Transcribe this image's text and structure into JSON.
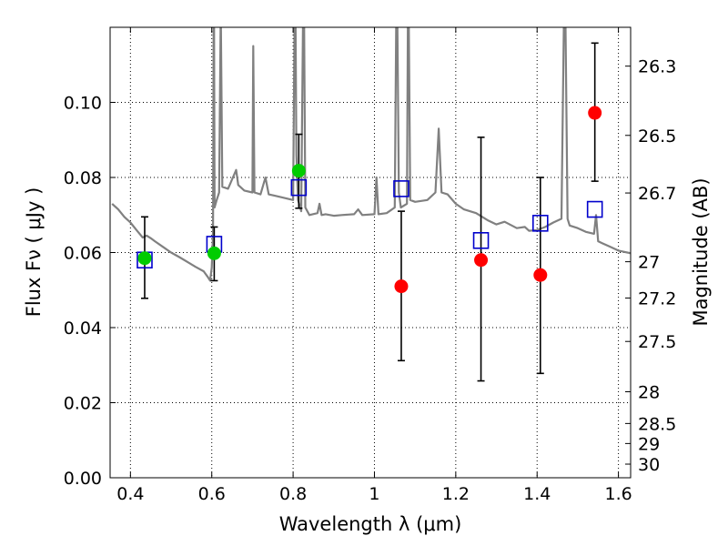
{
  "chart_data": {
    "type": "scatter",
    "xlabel": "Wavelength  λ (μm)",
    "ylabel": "Flux  Fν  ( μJy )",
    "ylabel_right": "Magnitude (AB)",
    "xlim": [
      0.35,
      1.63
    ],
    "ylim": [
      0.0,
      0.12
    ],
    "grid": true,
    "x_ticks": [
      0.4,
      0.6,
      0.8,
      1.0,
      1.2,
      1.4,
      1.6
    ],
    "x_tick_labels": [
      "0.4",
      "0.6",
      "0.8",
      "1",
      "1.2",
      "1.4",
      "1.6"
    ],
    "y_ticks": [
      0.0,
      0.02,
      0.04,
      0.06,
      0.08,
      0.1
    ],
    "y_tick_labels": [
      "0.00",
      "0.02",
      "0.04",
      "0.06",
      "0.08",
      "0.10"
    ],
    "mag_ticks": [
      26.3,
      26.5,
      26.7,
      27,
      27.2,
      27.5,
      28,
      28.5,
      29,
      30
    ],
    "mag_tick_labels": [
      "26.3",
      "26.5",
      "26.7",
      "27",
      "27.2",
      "27.5",
      "28",
      "28.5",
      "29",
      "30"
    ],
    "series": [
      {
        "marker": "circle",
        "color": "#00cc00",
        "points": [
          {
            "x": 0.435,
            "y": 0.0585,
            "yerr_low": 0.0478,
            "yerr_high": 0.0695
          },
          {
            "x": 0.606,
            "y": 0.0598,
            "yerr_low": 0.0525,
            "yerr_high": 0.0668
          },
          {
            "x": 0.814,
            "y": 0.0818,
            "yerr_low": 0.0718,
            "yerr_high": 0.0915
          }
        ]
      },
      {
        "marker": "circle",
        "color": "#ff0000",
        "points": [
          {
            "x": 1.066,
            "y": 0.051,
            "yerr_low": 0.0312,
            "yerr_high": 0.071
          },
          {
            "x": 1.262,
            "y": 0.058,
            "yerr_low": 0.0258,
            "yerr_high": 0.0907
          },
          {
            "x": 1.408,
            "y": 0.054,
            "yerr_low": 0.0278,
            "yerr_high": 0.08
          },
          {
            "x": 1.542,
            "y": 0.0972,
            "yerr_low": 0.079,
            "yerr_high": 0.1158
          }
        ]
      },
      {
        "marker": "square",
        "color": "#0000cc",
        "points": [
          {
            "x": 0.435,
            "y": 0.058
          },
          {
            "x": 0.606,
            "y": 0.0622
          },
          {
            "x": 0.814,
            "y": 0.0773
          },
          {
            "x": 1.066,
            "y": 0.077
          },
          {
            "x": 1.262,
            "y": 0.0632
          },
          {
            "x": 1.408,
            "y": 0.0678
          },
          {
            "x": 1.542,
            "y": 0.0715
          }
        ]
      }
    ],
    "model_sed": {
      "color": "#808080",
      "points": [
        [
          0.355,
          0.073
        ],
        [
          0.37,
          0.0715
        ],
        [
          0.385,
          0.0695
        ],
        [
          0.4,
          0.068
        ],
        [
          0.415,
          0.066
        ],
        [
          0.43,
          0.064
        ],
        [
          0.44,
          0.0645
        ],
        [
          0.45,
          0.0638
        ],
        [
          0.46,
          0.063
        ],
        [
          0.48,
          0.0615
        ],
        [
          0.5,
          0.06
        ],
        [
          0.52,
          0.0588
        ],
        [
          0.54,
          0.0575
        ],
        [
          0.56,
          0.0562
        ],
        [
          0.58,
          0.055
        ],
        [
          0.59,
          0.0535
        ],
        [
          0.596,
          0.0525
        ],
        [
          0.6,
          0.056
        ],
        [
          0.603,
          0.065
        ],
        [
          0.605,
          0.14
        ],
        [
          0.607,
          0.072
        ],
        [
          0.612,
          0.074
        ],
        [
          0.618,
          0.076
        ],
        [
          0.622,
          0.125
        ],
        [
          0.626,
          0.0775
        ],
        [
          0.64,
          0.077
        ],
        [
          0.66,
          0.082
        ],
        [
          0.665,
          0.078
        ],
        [
          0.68,
          0.0765
        ],
        [
          0.7,
          0.076
        ],
        [
          0.702,
          0.115
        ],
        [
          0.705,
          0.076
        ],
        [
          0.72,
          0.0755
        ],
        [
          0.732,
          0.08
        ],
        [
          0.74,
          0.0755
        ],
        [
          0.76,
          0.075
        ],
        [
          0.78,
          0.0745
        ],
        [
          0.8,
          0.074
        ],
        [
          0.805,
          0.14
        ],
        [
          0.808,
          0.086
        ],
        [
          0.812,
          0.074
        ],
        [
          0.82,
          0.071
        ],
        [
          0.826,
          0.14
        ],
        [
          0.83,
          0.072
        ],
        [
          0.84,
          0.07
        ],
        [
          0.86,
          0.0705
        ],
        [
          0.865,
          0.073
        ],
        [
          0.87,
          0.07
        ],
        [
          0.88,
          0.0702
        ],
        [
          0.9,
          0.0698
        ],
        [
          0.92,
          0.07
        ],
        [
          0.95,
          0.0702
        ],
        [
          0.96,
          0.0715
        ],
        [
          0.97,
          0.07
        ],
        [
          1.0,
          0.0702
        ],
        [
          1.005,
          0.08
        ],
        [
          1.01,
          0.0702
        ],
        [
          1.03,
          0.0705
        ],
        [
          1.05,
          0.072
        ],
        [
          1.055,
          0.14
        ],
        [
          1.06,
          0.076
        ],
        [
          1.065,
          0.072
        ],
        [
          1.08,
          0.073
        ],
        [
          1.083,
          0.14
        ],
        [
          1.088,
          0.074
        ],
        [
          1.1,
          0.0735
        ],
        [
          1.13,
          0.074
        ],
        [
          1.15,
          0.076
        ],
        [
          1.158,
          0.093
        ],
        [
          1.165,
          0.076
        ],
        [
          1.18,
          0.0755
        ],
        [
          1.2,
          0.073
        ],
        [
          1.22,
          0.0715
        ],
        [
          1.25,
          0.0705
        ],
        [
          1.28,
          0.0685
        ],
        [
          1.3,
          0.0675
        ],
        [
          1.32,
          0.0682
        ],
        [
          1.35,
          0.0665
        ],
        [
          1.37,
          0.0668
        ],
        [
          1.38,
          0.0658
        ],
        [
          1.4,
          0.066
        ],
        [
          1.42,
          0.0668
        ],
        [
          1.44,
          0.068
        ],
        [
          1.46,
          0.069
        ],
        [
          1.468,
          0.14
        ],
        [
          1.475,
          0.069
        ],
        [
          1.48,
          0.0672
        ],
        [
          1.5,
          0.0665
        ],
        [
          1.52,
          0.0655
        ],
        [
          1.54,
          0.065
        ],
        [
          1.545,
          0.07
        ],
        [
          1.55,
          0.063
        ],
        [
          1.56,
          0.0625
        ],
        [
          1.58,
          0.0615
        ],
        [
          1.6,
          0.0605
        ],
        [
          1.63,
          0.0598
        ]
      ]
    }
  }
}
